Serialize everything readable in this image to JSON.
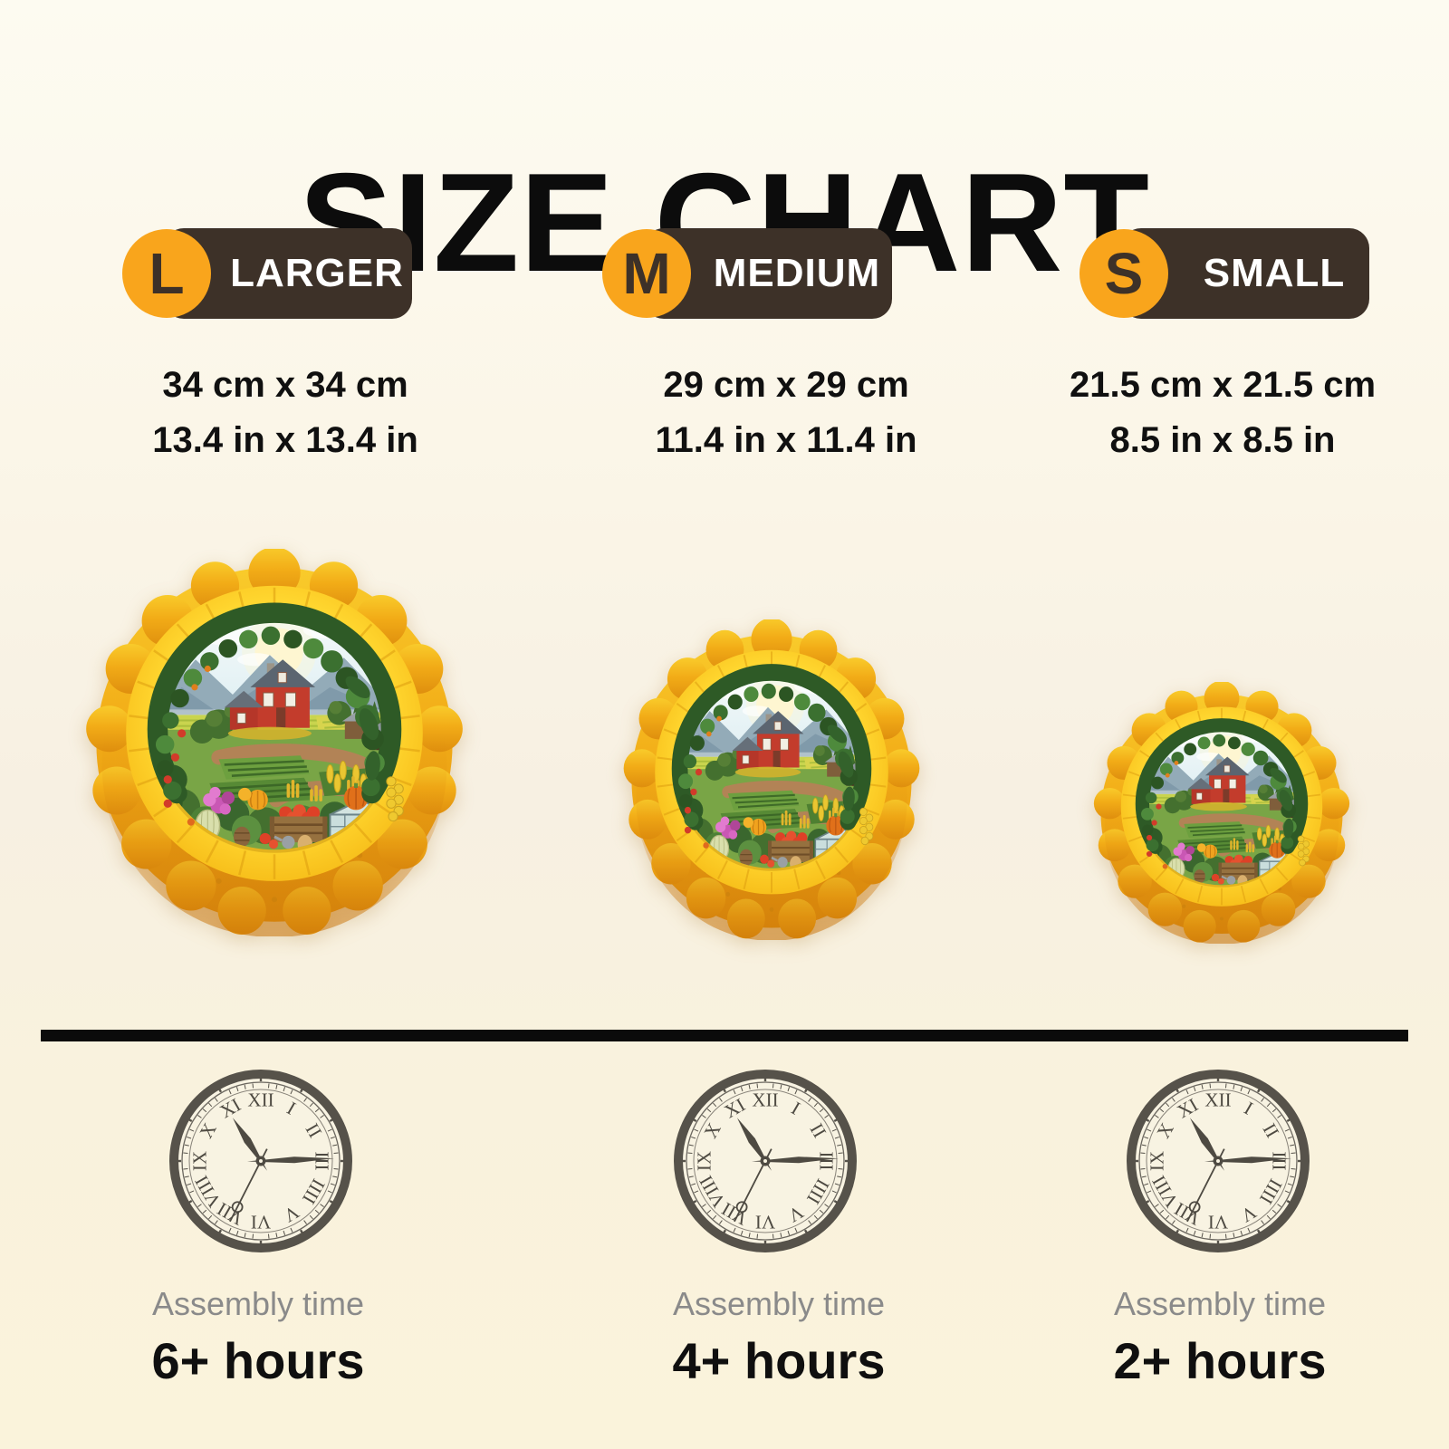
{
  "title": "SIZE CHART",
  "columns": [
    {
      "id": "L",
      "badge_letter": "L",
      "badge_label": "LARGER",
      "dim_cm": "34 cm x 34 cm",
      "dim_in": "13.4 in x 13.4 in",
      "assembly_label": "Assembly time",
      "assembly_hours": "6+ hours"
    },
    {
      "id": "M",
      "badge_letter": "M",
      "badge_label": "MEDIUM",
      "dim_cm": "29 cm x 29 cm",
      "dim_in": "11.4 in x 11.4 in",
      "assembly_label": "Assembly time",
      "assembly_hours": "4+ hours"
    },
    {
      "id": "S",
      "badge_letter": "S",
      "badge_label": "SMALL",
      "dim_cm": "21.5 cm x 21.5 cm",
      "dim_in": "8.5 in x 8.5 in",
      "assembly_label": "Assembly time",
      "assembly_hours": "2+ hours"
    }
  ],
  "clock": {
    "numerals": [
      "XII",
      "I",
      "II",
      "III",
      "IIII",
      "V",
      "VI",
      "VII",
      "VIII",
      "IX",
      "X",
      "XI"
    ]
  },
  "colors": {
    "accent_orange": "#F9A51C",
    "badge_brown": "#3D3128",
    "divider_black": "#0B0B0B",
    "assembly_gray": "#8A8A8A",
    "background_top": "#FDFBF1",
    "background_bottom": "#FAF3DB"
  }
}
